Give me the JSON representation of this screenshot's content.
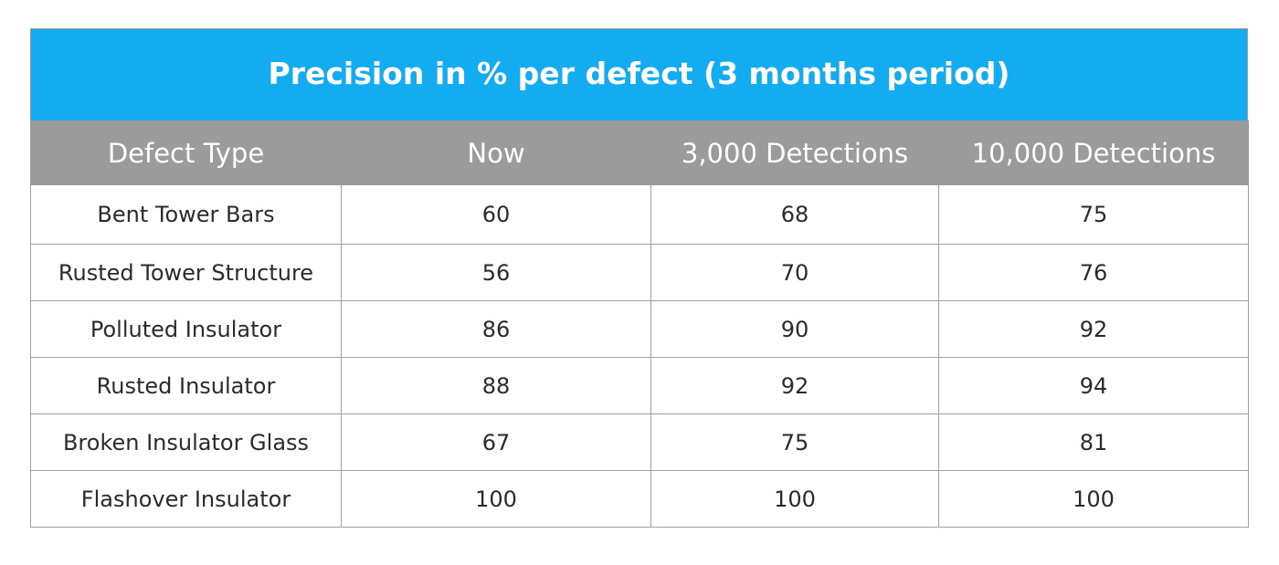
{
  "chart_data": {
    "type": "table",
    "title": "Precision in % per defect (3 months period)",
    "columns": [
      "Defect Type",
      "Now",
      "3,000 Detections",
      "10,000 Detections"
    ],
    "rows": [
      [
        "Bent Tower Bars",
        "60",
        "68",
        "75"
      ],
      [
        "Rusted Tower Structure",
        "56",
        "70",
        "76"
      ],
      [
        "Polluted Insulator",
        "86",
        "90",
        "92"
      ],
      [
        "Rusted Insulator",
        "88",
        "92",
        "94"
      ],
      [
        "Broken Insulator Glass",
        "67",
        "75",
        "81"
      ],
      [
        "Flashover Insulator",
        "100",
        "100",
        "100"
      ]
    ]
  },
  "colors": {
    "title_background": "#14acf0",
    "header_background": "#9b9b9b",
    "title_text": "#ffffff",
    "header_text": "#ffffff",
    "cell_text": "#2b2b2b",
    "grid": "#a0a0a0"
  }
}
